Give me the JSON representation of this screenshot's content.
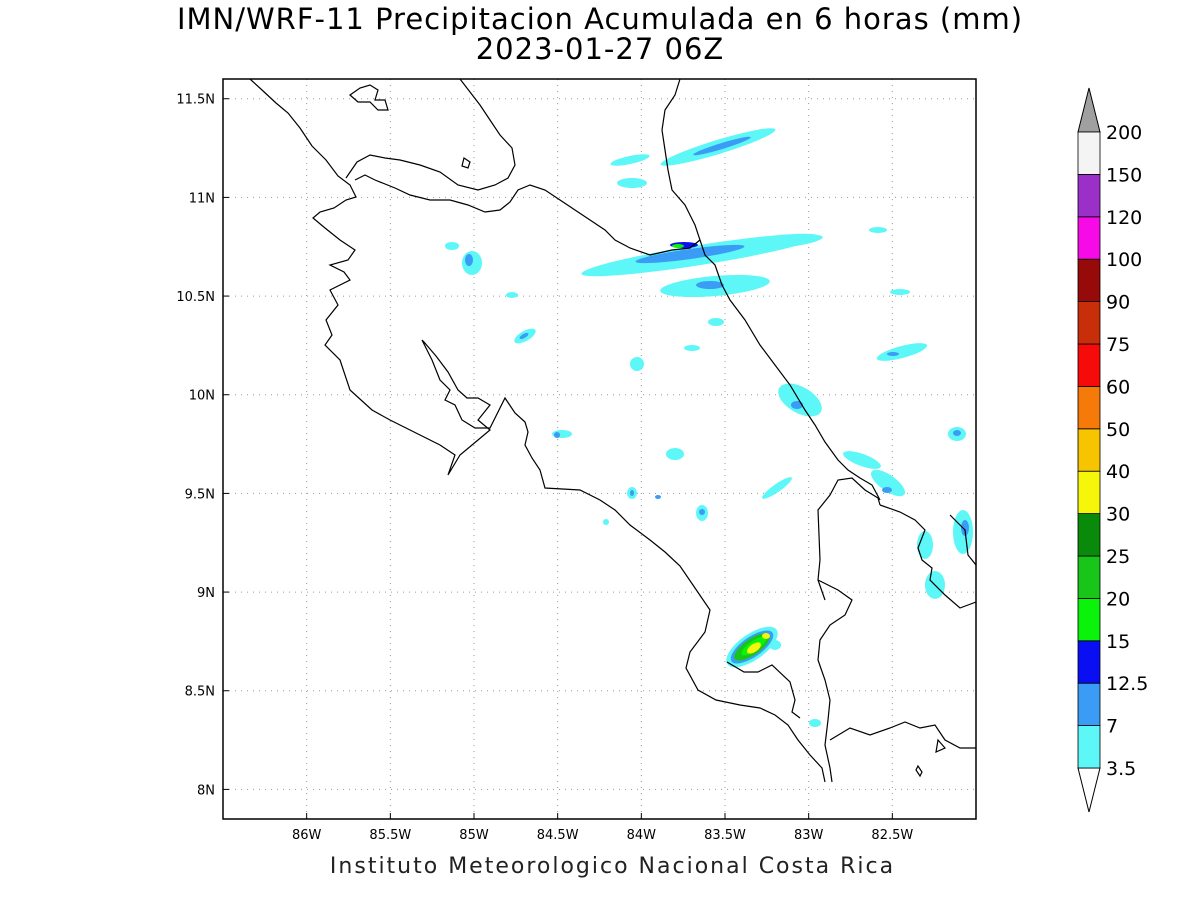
{
  "title": {
    "line1": "IMN/WRF-11 Precipitacion Acumulada en 6 horas (mm)",
    "line2": "2023-01-27 06Z"
  },
  "footer": "Instituto Meteorologico Nacional Costa Rica",
  "map": {
    "lon_range": [
      -86.5,
      -82.0
    ],
    "lat_range": [
      7.85,
      11.6
    ],
    "grid": true,
    "lon_ticks": [
      {
        "value": -86.0,
        "label": "86W"
      },
      {
        "value": -85.5,
        "label": "85.5W"
      },
      {
        "value": -85.0,
        "label": "85W"
      },
      {
        "value": -84.5,
        "label": "84.5W"
      },
      {
        "value": -84.0,
        "label": "84W"
      },
      {
        "value": -83.5,
        "label": "83.5W"
      },
      {
        "value": -83.0,
        "label": "83W"
      },
      {
        "value": -82.5,
        "label": "82.5W"
      }
    ],
    "lat_ticks": [
      {
        "value": 11.5,
        "label": "11.5N"
      },
      {
        "value": 11.0,
        "label": "11N"
      },
      {
        "value": 10.5,
        "label": "10.5N"
      },
      {
        "value": 10.0,
        "label": "10N"
      },
      {
        "value": 9.5,
        "label": "9.5N"
      },
      {
        "value": 9.0,
        "label": "9N"
      },
      {
        "value": 8.5,
        "label": "8.5N"
      },
      {
        "value": 8.0,
        "label": "8N"
      }
    ]
  },
  "colorbar": {
    "levels": [
      "3.5",
      "7",
      "12.5",
      "15",
      "20",
      "25",
      "30",
      "40",
      "50",
      "60",
      "75",
      "90",
      "100",
      "120",
      "150",
      "200"
    ],
    "colors": [
      "#5ef7f7",
      "#3a9cf4",
      "#0a0ef2",
      "#0bf20b",
      "#19c519",
      "#0a8a0a",
      "#f6f60a",
      "#f6c400",
      "#f67a0a",
      "#f60a0a",
      "#c82e0a",
      "#960a0a",
      "#f60ae6",
      "#9a30c8",
      "#f4f4f4"
    ],
    "top_arrow_color": "#a0a0a0",
    "bottom_arrow_color": "#ffffff"
  }
}
